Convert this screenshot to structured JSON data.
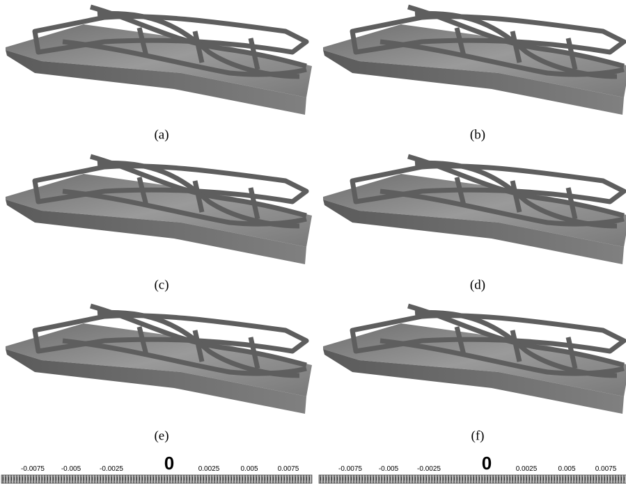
{
  "panels": [
    {
      "caption": "(a)"
    },
    {
      "caption": "(b)"
    },
    {
      "caption": "(c)"
    },
    {
      "caption": "(d)"
    },
    {
      "caption": "(e)"
    },
    {
      "caption": "(f)"
    }
  ],
  "colorbars": [
    {
      "ticks": [
        "-0.0075",
        "-0.005",
        "-0.0025",
        "0",
        "0.0025",
        "0.005",
        "0.0075"
      ]
    },
    {
      "ticks": [
        "-0.0075",
        "-0.005",
        "-0.0025",
        "0",
        "0.0025",
        "0.005",
        "0.0075"
      ]
    }
  ]
}
